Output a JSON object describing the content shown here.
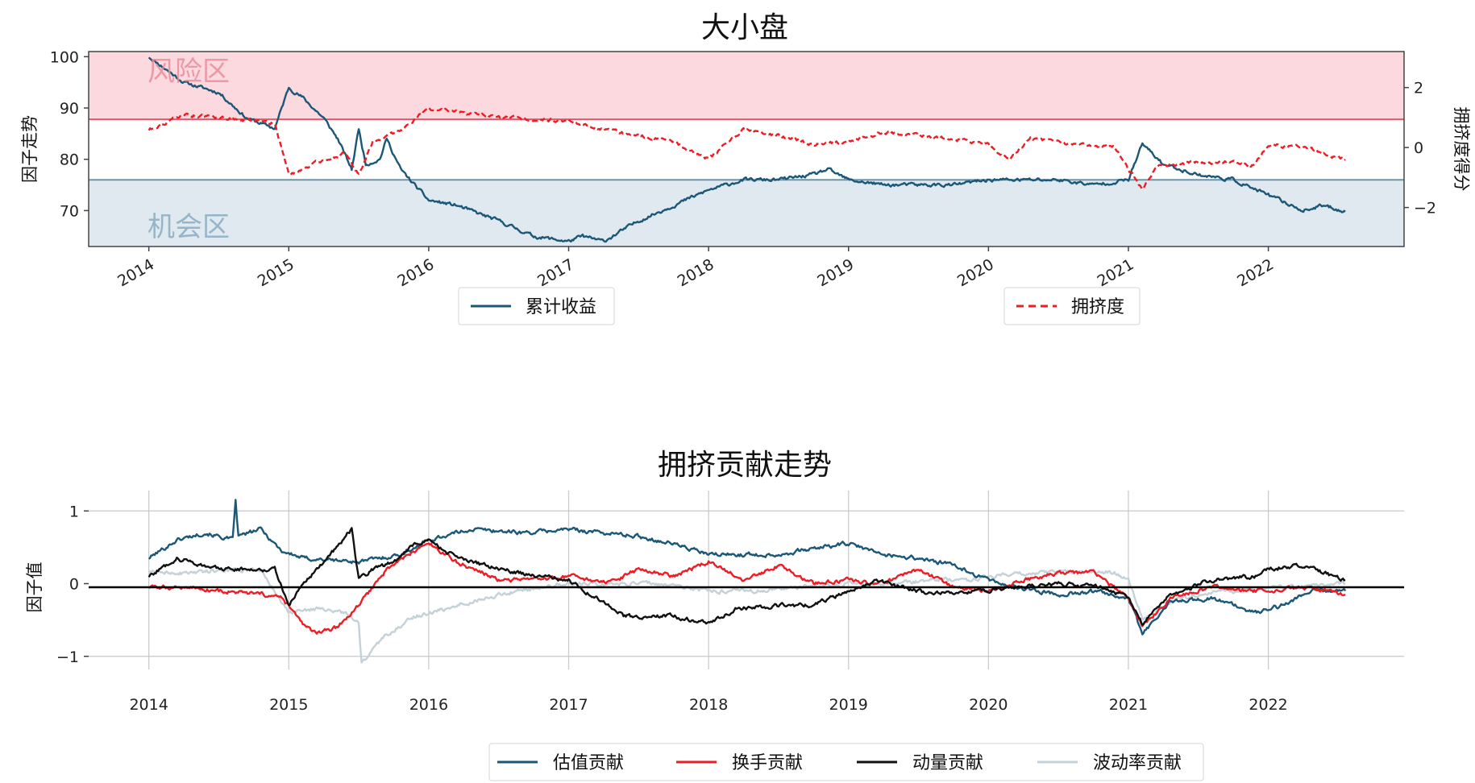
{
  "chart_data": [
    {
      "type": "line",
      "title": "大小盘",
      "ylabel": "因子走势",
      "ylabel_right": "拥挤度得分",
      "ylim": [
        63,
        101
      ],
      "ylim_right": [
        -3.3,
        3.2
      ],
      "yticks": [
        70,
        80,
        90,
        100
      ],
      "yticks_right": [
        -2,
        0,
        2
      ],
      "xlim": [
        2013.57,
        2022.97
      ],
      "xticks": [
        "2014",
        "2015",
        "2016",
        "2017",
        "2018",
        "2019",
        "2020",
        "2021",
        "2022"
      ],
      "xtick_values": [
        2014,
        2015,
        2016,
        2017,
        2018,
        2019,
        2020,
        2021,
        2022
      ],
      "zones": [
        {
          "label": "风险区",
          "from": 87.8,
          "to": 101,
          "color": "#fbd9de",
          "line": "#e25a6a"
        },
        {
          "label": "机会区",
          "from": 63,
          "to": 76,
          "color": "#dfe9ef",
          "line": "#6d93ab"
        }
      ],
      "legend": [
        {
          "label": "累计收益",
          "color": "#1b5777",
          "style": "solid"
        },
        {
          "label": "拥挤度",
          "color": "#ee1c25",
          "style": "dashed"
        }
      ],
      "series": [
        {
          "name": "累计收益",
          "axis": "left",
          "color": "#1b5777",
          "x": [
            2014.0,
            2014.25,
            2014.5,
            2014.7,
            2014.9,
            2015.0,
            2015.1,
            2015.25,
            2015.35,
            2015.45,
            2015.5,
            2015.55,
            2015.65,
            2015.7,
            2015.8,
            2016.0,
            2016.2,
            2016.5,
            2016.75,
            2017.0,
            2017.1,
            2017.25,
            2017.5,
            2017.75,
            2018.0,
            2018.25,
            2018.5,
            2018.75,
            2018.85,
            2019.0,
            2019.25,
            2019.5,
            2019.75,
            2020.0,
            2020.25,
            2020.5,
            2020.75,
            2021.0,
            2021.1,
            2021.25,
            2021.5,
            2021.75,
            2022.0,
            2022.25,
            2022.4,
            2022.55
          ],
          "y": [
            100,
            95,
            93,
            88,
            86,
            94,
            92,
            88,
            84,
            78,
            86,
            79,
            80,
            84,
            78,
            72,
            71,
            68,
            65,
            64,
            65,
            64,
            68,
            71,
            74,
            76,
            76,
            77,
            78,
            76,
            75,
            75,
            75,
            76,
            76,
            76,
            75,
            76,
            83,
            79,
            77,
            76,
            73,
            70,
            71,
            69.8
          ]
        },
        {
          "name": "拥挤度",
          "axis": "right",
          "color": "#ee1c25",
          "x": [
            2014.0,
            2014.25,
            2014.5,
            2014.75,
            2014.9,
            2015.0,
            2015.2,
            2015.4,
            2015.5,
            2015.6,
            2015.8,
            2016.0,
            2016.5,
            2017.0,
            2017.25,
            2017.5,
            2017.75,
            2018.0,
            2018.25,
            2018.5,
            2018.75,
            2019.0,
            2019.25,
            2019.5,
            2019.75,
            2020.0,
            2020.15,
            2020.3,
            2020.6,
            2020.9,
            2021.1,
            2021.2,
            2021.5,
            2021.75,
            2021.9,
            2022.0,
            2022.25,
            2022.55
          ],
          "y": [
            0.6,
            1.1,
            1.0,
            0.9,
            0.8,
            -0.9,
            -0.5,
            -0.2,
            -0.9,
            0.2,
            0.6,
            1.3,
            1.0,
            0.9,
            0.6,
            0.4,
            0.2,
            -0.4,
            0.6,
            0.4,
            0.1,
            0.2,
            0.5,
            0.4,
            0.3,
            0.1,
            -0.4,
            0.3,
            0.1,
            0.0,
            -1.4,
            -0.6,
            -0.5,
            -0.5,
            -0.6,
            0.1,
            0.0,
            -0.4
          ]
        }
      ]
    },
    {
      "type": "line",
      "title": "拥挤贡献走势",
      "ylabel": "因子值",
      "ylim": [
        -1.18,
        1.28
      ],
      "yticks": [
        -1,
        0,
        1
      ],
      "xlim": [
        2013.57,
        2022.97
      ],
      "xticks": [
        "2014",
        "2015",
        "2016",
        "2017",
        "2018",
        "2019",
        "2020",
        "2021",
        "2022"
      ],
      "xtick_values": [
        2014,
        2015,
        2016,
        2017,
        2018,
        2019,
        2020,
        2021,
        2022
      ],
      "grid": true,
      "legend": [
        {
          "label": "估值贡献",
          "color": "#1b5777"
        },
        {
          "label": "换手贡献",
          "color": "#ee1c25"
        },
        {
          "label": "动量贡献",
          "color": "#111111"
        },
        {
          "label": "波动率贡献",
          "color": "#c5d1d8"
        }
      ],
      "series": [
        {
          "name": "估值贡献",
          "color": "#1b5777",
          "x": [
            2014.0,
            2014.2,
            2014.4,
            2014.6,
            2014.62,
            2014.64,
            2014.8,
            2014.95,
            2015.1,
            2015.5,
            2015.8,
            2016.0,
            2016.3,
            2016.7,
            2017.0,
            2017.5,
            2017.75,
            2018.0,
            2018.5,
            2018.8,
            2019.0,
            2019.25,
            2019.5,
            2019.75,
            2020.0,
            2020.2,
            2020.5,
            2020.8,
            2021.0,
            2021.1,
            2021.3,
            2021.6,
            2021.9,
            2022.1,
            2022.3,
            2022.55
          ],
          "y": [
            0.35,
            0.6,
            0.7,
            0.6,
            1.15,
            0.65,
            0.75,
            0.45,
            0.35,
            0.3,
            0.4,
            0.6,
            0.75,
            0.7,
            0.75,
            0.65,
            0.55,
            0.4,
            0.4,
            0.5,
            0.55,
            0.4,
            0.35,
            0.25,
            0.05,
            -0.05,
            -0.15,
            -0.1,
            -0.2,
            -0.7,
            -0.25,
            -0.2,
            -0.4,
            -0.3,
            -0.1,
            -0.1
          ]
        },
        {
          "name": "换手贡献",
          "color": "#ee1c25",
          "x": [
            2014.0,
            2014.3,
            2014.5,
            2014.8,
            2014.95,
            2015.1,
            2015.2,
            2015.35,
            2015.5,
            2015.7,
            2015.9,
            2016.0,
            2016.2,
            2016.5,
            2016.8,
            2017.0,
            2017.3,
            2017.5,
            2017.75,
            2018.0,
            2018.25,
            2018.5,
            2018.75,
            2019.0,
            2019.25,
            2019.5,
            2019.75,
            2020.0,
            2020.25,
            2020.5,
            2020.75,
            2021.0,
            2021.1,
            2021.3,
            2021.6,
            2021.85,
            2022.0,
            2022.25,
            2022.55
          ],
          "y": [
            -0.05,
            -0.05,
            -0.1,
            -0.15,
            -0.2,
            -0.55,
            -0.7,
            -0.6,
            -0.3,
            0.2,
            0.45,
            0.55,
            0.3,
            0.05,
            0.05,
            0.1,
            0.0,
            0.2,
            0.1,
            0.3,
            0.05,
            0.25,
            0.0,
            0.05,
            0.0,
            0.2,
            -0.05,
            -0.1,
            0.05,
            0.15,
            0.15,
            -0.2,
            -0.6,
            -0.2,
            -0.05,
            -0.1,
            -0.1,
            -0.05,
            -0.15
          ]
        },
        {
          "name": "动量贡献",
          "color": "#111111",
          "x": [
            2014.0,
            2014.2,
            2014.5,
            2014.9,
            2015.0,
            2015.1,
            2015.3,
            2015.45,
            2015.5,
            2015.6,
            2015.75,
            2015.9,
            2016.0,
            2016.2,
            2016.5,
            2016.8,
            2017.0,
            2017.2,
            2017.4,
            2017.6,
            2017.75,
            2018.0,
            2018.2,
            2018.5,
            2018.75,
            2019.0,
            2019.2,
            2019.4,
            2019.6,
            2019.8,
            2020.0,
            2020.2,
            2020.5,
            2020.8,
            2021.0,
            2021.1,
            2021.3,
            2021.6,
            2021.9,
            2022.0,
            2022.2,
            2022.4,
            2022.55
          ],
          "y": [
            0.1,
            0.35,
            0.2,
            0.2,
            -0.3,
            0.0,
            0.4,
            0.75,
            0.05,
            0.2,
            0.3,
            0.55,
            0.6,
            0.35,
            0.2,
            0.1,
            0.05,
            -0.2,
            -0.45,
            -0.45,
            -0.45,
            -0.55,
            -0.35,
            -0.3,
            -0.3,
            -0.1,
            0.05,
            -0.05,
            -0.15,
            -0.1,
            -0.1,
            -0.05,
            0.0,
            -0.05,
            -0.2,
            -0.55,
            -0.15,
            0.05,
            0.1,
            0.2,
            0.25,
            0.15,
            0.05
          ]
        },
        {
          "name": "波动率贡献",
          "color": "#c5d1d8",
          "x": [
            2014.0,
            2014.3,
            2014.6,
            2014.8,
            2015.0,
            2015.2,
            2015.4,
            2015.5,
            2015.52,
            2015.7,
            2015.9,
            2016.0,
            2016.2,
            2016.5,
            2016.8,
            2017.0,
            2017.3,
            2017.6,
            2018.0,
            2018.3,
            2018.6,
            2019.0,
            2019.3,
            2019.6,
            2019.9,
            2020.0,
            2020.3,
            2020.6,
            2020.9,
            2021.0,
            2021.1,
            2021.3,
            2021.6,
            2021.8,
            2022.0,
            2022.3,
            2022.55
          ],
          "y": [
            0.15,
            0.15,
            0.2,
            0.2,
            -0.4,
            -0.35,
            -0.4,
            -0.55,
            -1.1,
            -0.7,
            -0.45,
            -0.4,
            -0.3,
            -0.15,
            -0.05,
            0.0,
            0.0,
            0.0,
            -0.1,
            -0.1,
            -0.05,
            0.0,
            0.0,
            0.05,
            0.05,
            0.1,
            0.15,
            0.15,
            0.15,
            0.05,
            -0.5,
            -0.25,
            -0.1,
            -0.1,
            -0.05,
            -0.05,
            0.0
          ]
        }
      ]
    }
  ]
}
